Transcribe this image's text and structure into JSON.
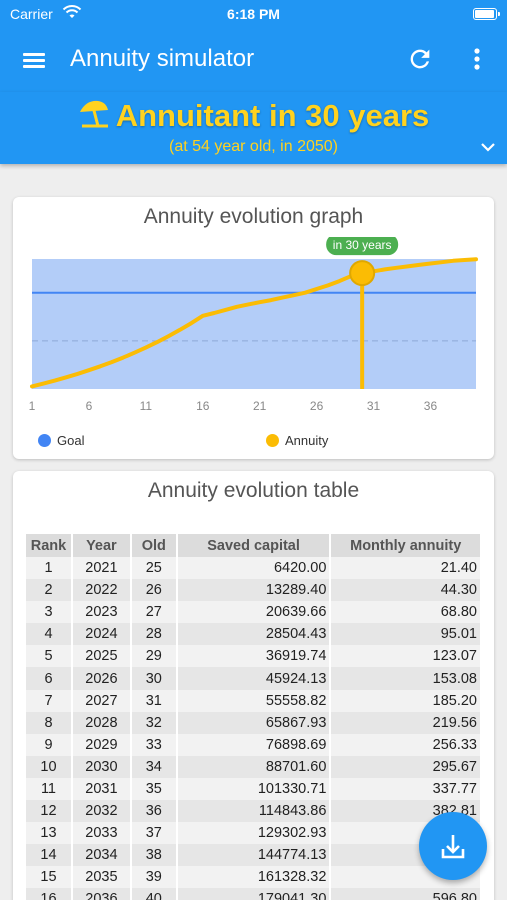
{
  "status_bar": {
    "carrier": "Carrier",
    "time": "6:18 PM"
  },
  "app_bar": {
    "title": "Annuity simulator"
  },
  "banner": {
    "headline": "Annuitant in 30 years",
    "subline": "(at 54 year old, in 2050)"
  },
  "graph_card": {
    "title": "Annuity evolution graph",
    "tooltip": "in 30 years",
    "legend": [
      {
        "label": "Goal",
        "color": "#4285f4"
      },
      {
        "label": "Annuity",
        "color": "#fbbc04"
      }
    ]
  },
  "chart_data": {
    "type": "line",
    "x_ticks": [
      "1",
      "6",
      "11",
      "16",
      "21",
      "26",
      "31",
      "36"
    ],
    "xlim": [
      1,
      40
    ],
    "ylim": [
      0,
      1060
    ],
    "series": [
      {
        "name": "Goal",
        "y": 785,
        "color": "#4285f4"
      },
      {
        "name": "Annuity",
        "color": "#fbbc04",
        "x": [
          1,
          2,
          3,
          4,
          5,
          6,
          7,
          8,
          9,
          10,
          11,
          12,
          13,
          14,
          15,
          16,
          17,
          18,
          19,
          20,
          21,
          22,
          23,
          24,
          25,
          26,
          27,
          28,
          29,
          30,
          31,
          32,
          33,
          34,
          35,
          36,
          37,
          38,
          39,
          40
        ],
        "y": [
          21.4,
          44.3,
          68.8,
          95.01,
          123.07,
          153.08,
          185.2,
          219.56,
          256.33,
          295.67,
          337.77,
          382.81,
          431.0,
          482.5,
          537.6,
          596.8,
          620,
          645,
          670,
          690,
          708,
          725,
          745,
          765,
          785,
          815,
          845,
          880,
          920,
          945,
          960,
          975,
          988,
          1000,
          1012,
          1023,
          1034,
          1045,
          1052,
          1058
        ]
      }
    ],
    "highlight": {
      "x": 30,
      "label": "in 30 years"
    }
  },
  "table_card": {
    "title": "Annuity evolution table",
    "columns": [
      "Rank",
      "Year",
      "Old",
      "Saved capital",
      "Monthly annuity"
    ],
    "rows": [
      [
        "1",
        "2021",
        "25",
        "6420.00",
        "21.40"
      ],
      [
        "2",
        "2022",
        "26",
        "13289.40",
        "44.30"
      ],
      [
        "3",
        "2023",
        "27",
        "20639.66",
        "68.80"
      ],
      [
        "4",
        "2024",
        "28",
        "28504.43",
        "95.01"
      ],
      [
        "5",
        "2025",
        "29",
        "36919.74",
        "123.07"
      ],
      [
        "6",
        "2026",
        "30",
        "45924.13",
        "153.08"
      ],
      [
        "7",
        "2027",
        "31",
        "55558.82",
        "185.20"
      ],
      [
        "8",
        "2028",
        "32",
        "65867.93",
        "219.56"
      ],
      [
        "9",
        "2029",
        "33",
        "76898.69",
        "256.33"
      ],
      [
        "10",
        "2030",
        "34",
        "88701.60",
        "295.67"
      ],
      [
        "11",
        "2031",
        "35",
        "101330.71",
        "337.77"
      ],
      [
        "12",
        "2032",
        "36",
        "114843.86",
        "382.81"
      ],
      [
        "13",
        "2033",
        "37",
        "129302.93",
        ""
      ],
      [
        "14",
        "2034",
        "38",
        "144774.13",
        ""
      ],
      [
        "15",
        "2035",
        "39",
        "161328.32",
        ""
      ],
      [
        "16",
        "2036",
        "40",
        "179041.30",
        "596.80"
      ]
    ]
  },
  "colors": {
    "primary": "#2196f3",
    "accent": "#ffd21f",
    "goal": "#4285f4",
    "annuity": "#fbbc04"
  }
}
